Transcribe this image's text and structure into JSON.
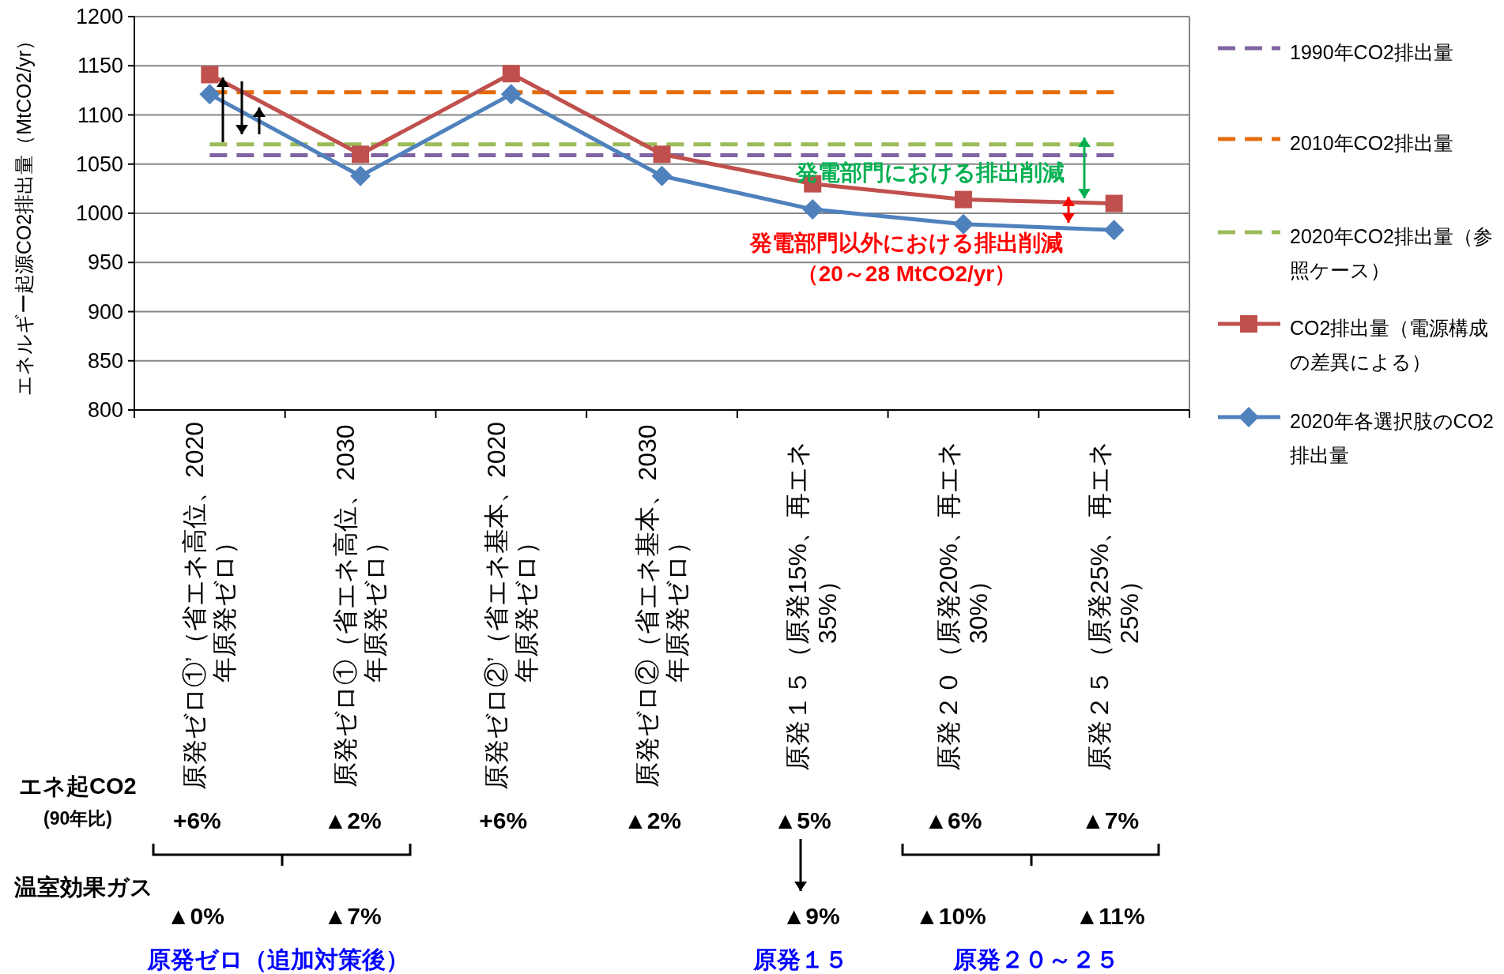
{
  "chart_data": {
    "type": "line",
    "ylabel": "エネルギー起源CO2排出量（MtCO2/yr）",
    "categories": [
      "原発ゼロ①’（省エネ高位、2020年原発ゼロ）",
      "原発ゼロ①（省エネ高位、2030年原発ゼロ）",
      "原発ゼロ②’（省エネ基本、2020年原発ゼロ）",
      "原発ゼロ②（省エネ基本、2030年原発ゼロ）",
      "原発１５（原発15%、再エネ35%）",
      "原発２０（原発20%、再エネ30%）",
      "原発２５（原発25%、再エネ25%）"
    ],
    "series": [
      {
        "name": "1990年CO2排出量",
        "color": "#8064a2",
        "marker": "none",
        "line_style": "dashed",
        "values": [
          1059,
          1059,
          1059,
          1059,
          1059,
          1059,
          1059
        ]
      },
      {
        "name": "2010年CO2排出量",
        "color": "#e46c0a",
        "marker": "none",
        "line_style": "dashed",
        "values": [
          1123,
          1123,
          1123,
          1123,
          1123,
          1123,
          1123
        ]
      },
      {
        "name": "2020年CO2排出量（参照ケース）",
        "color": "#9bbb59",
        "marker": "none",
        "line_style": "dashed",
        "values": [
          1070,
          1070,
          1070,
          1070,
          1070,
          1070,
          1070
        ]
      },
      {
        "name": "CO2排出量（電源構成の差異による）",
        "color": "#c0504d",
        "marker": "square",
        "line_style": "solid",
        "values": [
          1141,
          1060,
          1142,
          1060,
          1030,
          1014,
          1010
        ]
      },
      {
        "name": "2020年各選択肢のCO2排出量",
        "color": "#4f81bd",
        "marker": "diamond",
        "line_style": "solid",
        "values": [
          1121,
          1038,
          1121,
          1038,
          1004,
          989,
          983
        ]
      }
    ],
    "ylim": [
      800,
      1200
    ],
    "yticks": [
      800,
      850,
      900,
      950,
      1000,
      1050,
      1100,
      1150,
      1200
    ],
    "grid": "y",
    "legend": "right",
    "annotations": [
      "発電部門における排出削減",
      "発電部門以外における排出削減",
      "（20～28 MtCO2/yr）",
      "エネ起CO2",
      "(90年比)",
      "+6%",
      "▲2%",
      "+6%",
      "▲2%",
      "▲5%",
      "▲6%",
      "▲7%",
      "温室効果ガス",
      "▲0%",
      "▲7%",
      "▲9%",
      "▲10%",
      "▲11%",
      "原発ゼロ（追加対策後）",
      "原発１５",
      "原発２０～２５"
    ]
  }
}
